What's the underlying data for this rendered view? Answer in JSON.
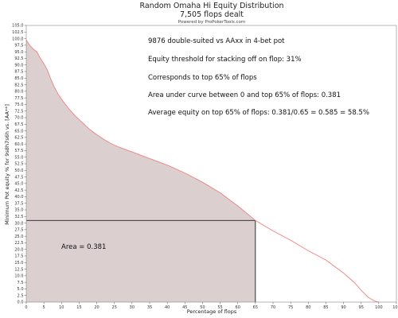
{
  "chart_data": {
    "type": "area",
    "title": "Random Omaha Hi Equity Distribution",
    "subtitle": "7,505 flops dealt",
    "powered_by": "Powered by ProPokerTools.com",
    "xlabel": "Percentage of flops",
    "ylabel": "Minimum Pot equity % for 9s8h7s6h vs. [AA**]",
    "xlim": [
      0,
      105
    ],
    "ylim": [
      0,
      105
    ],
    "grid": false,
    "x_ticks": [
      "0",
      "5",
      "10",
      "15",
      "20",
      "25",
      "30",
      "35",
      "40",
      "45",
      "50",
      "55",
      "60",
      "65",
      "70",
      "75",
      "80",
      "85",
      "90",
      "95",
      "100",
      "105"
    ],
    "y_ticks": [
      "0.0",
      "2.5",
      "5.0",
      "7.5",
      "10.0",
      "12.5",
      "15.0",
      "17.5",
      "20.0",
      "22.5",
      "25.0",
      "27.5",
      "30.0",
      "32.5",
      "35.0",
      "37.5",
      "40.0",
      "42.5",
      "45.0",
      "47.5",
      "50.0",
      "52.5",
      "55.0",
      "57.5",
      "60.0",
      "62.5",
      "65.0",
      "67.5",
      "70.0",
      "72.5",
      "75.0",
      "77.5",
      "80.0",
      "82.5",
      "85.0",
      "87.5",
      "90.0",
      "92.5",
      "95.0",
      "97.5",
      "100.0",
      "102.5",
      "105.0"
    ],
    "series": [
      {
        "color": "#f08080",
        "x": [
          0,
          1,
          2,
          3,
          4,
          5,
          6,
          7,
          8,
          9,
          10,
          12,
          14,
          16,
          18,
          20,
          22,
          24,
          26,
          28,
          30,
          35,
          40,
          45,
          50,
          55,
          60,
          65,
          70,
          75,
          80,
          85,
          90,
          93,
          95,
          97,
          99,
          100
        ],
        "y": [
          99.5,
          97.5,
          96.0,
          95.0,
          92.5,
          90.5,
          88.0,
          84.5,
          81.5,
          79.0,
          77.0,
          73.5,
          70.5,
          68.0,
          65.5,
          63.5,
          61.8,
          60.2,
          59.0,
          58.0,
          57.0,
          54.5,
          52.0,
          49.0,
          45.5,
          41.5,
          36.5,
          31.0,
          27.0,
          23.5,
          19.5,
          16.0,
          11.0,
          7.5,
          4.5,
          1.8,
          0.3,
          0.0
        ]
      }
    ],
    "shaded_region": {
      "x_end": 65,
      "fill": "#dccfcf"
    },
    "threshold_box": {
      "x": 65,
      "y": 31.0
    },
    "annotations": [
      "9876 double-suited vs AAxx in 4-bet pot",
      "Equity threshold for stacking off on flop: 31%",
      "Corresponds to top 65% of flops",
      "Area under curve between 0 and top 65% of flops: 0.381",
      "Average equity on top 65% of flops: 0.381/0.65 = 0.585 = 58.5%"
    ],
    "area_label": "Area = 0.381"
  }
}
